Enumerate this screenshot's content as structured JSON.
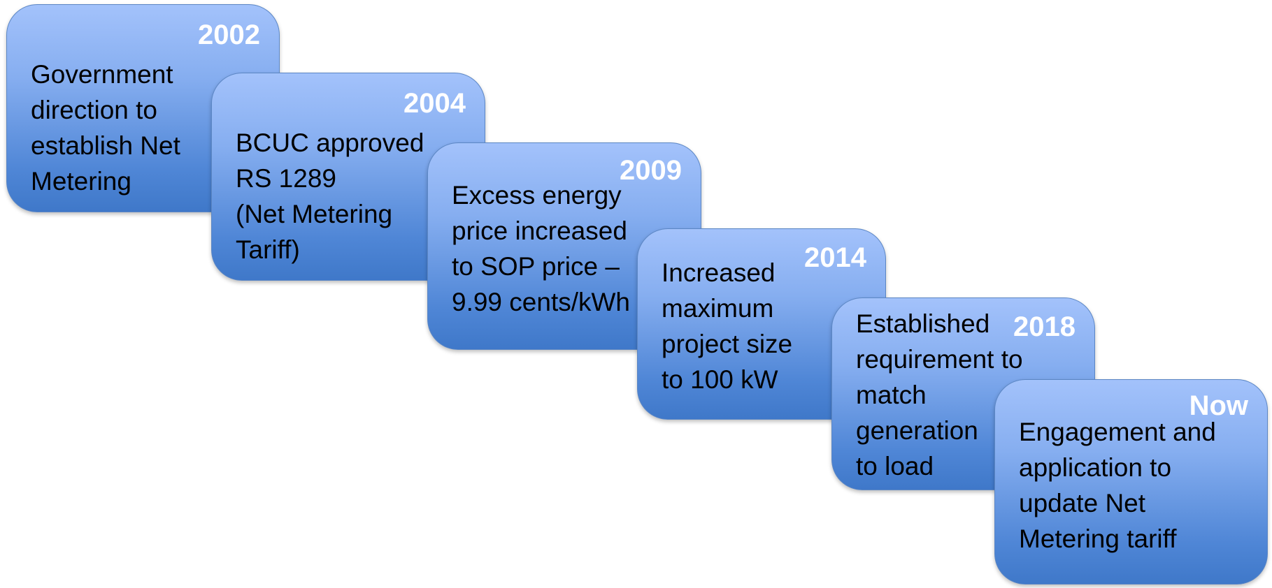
{
  "timeline": {
    "items": [
      {
        "year": "2002",
        "lines": [
          "Government",
          "direction to",
          "establish Net",
          "Metering"
        ]
      },
      {
        "year": "2004",
        "lines": [
          "BCUC approved",
          "RS 1289",
          "(Net Metering",
          "Tariff)"
        ]
      },
      {
        "year": "2009",
        "lines": [
          "Excess energy",
          "price increased",
          "to SOP price –",
          "9.99 cents/kWh"
        ]
      },
      {
        "year": "2014",
        "lines": [
          "Increased",
          "maximum",
          "project size",
          "to 100 kW"
        ]
      },
      {
        "year": "2018",
        "lines": [
          "Established",
          "requirement to",
          "match",
          "generation",
          "to load"
        ]
      },
      {
        "year": "Now",
        "lines": [
          "Engagement and",
          "application to",
          "update Net",
          "Metering tariff"
        ]
      }
    ]
  }
}
